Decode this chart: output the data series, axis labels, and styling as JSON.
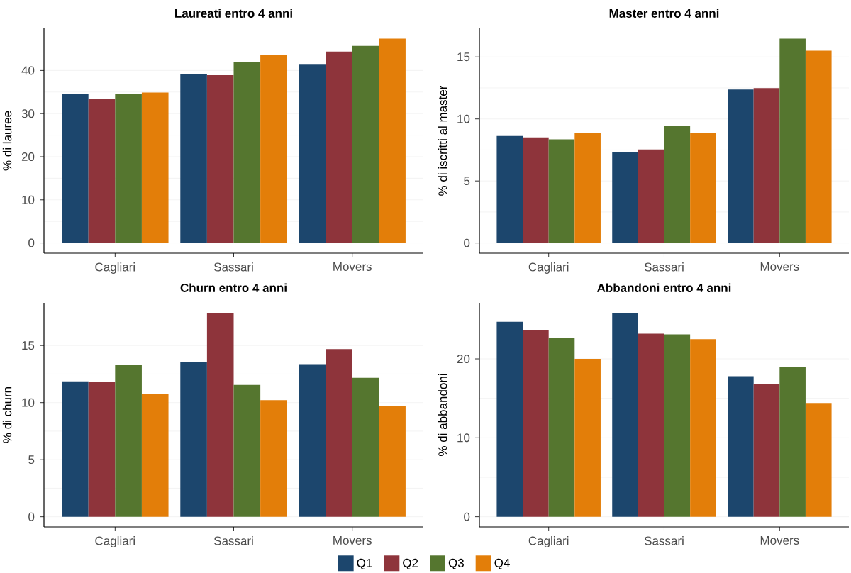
{
  "chart_data": [
    {
      "type": "bar",
      "title": "Laureati entro 4 anni",
      "ylabel": "% di lauree",
      "categories": [
        "Cagliari",
        "Sassari",
        "Movers"
      ],
      "ylim": [
        -2.37,
        49.77
      ],
      "yticks": [
        0,
        10,
        20,
        30,
        40
      ],
      "grid": "y",
      "series": [
        {
          "color": "#1c466d",
          "values": [
            34.6,
            39.2,
            41.5
          ]
        },
        {
          "color": "#8e343b",
          "values": [
            33.5,
            38.9,
            44.4
          ]
        },
        {
          "color": "#55762f",
          "values": [
            34.6,
            42.0,
            45.7
          ]
        },
        {
          "color": "#e37e09",
          "values": [
            34.9,
            43.7,
            47.4
          ]
        }
      ]
    },
    {
      "type": "bar",
      "title": "Master entro 4 anni",
      "ylabel": "% di iscritti al master",
      "categories": [
        "Cagliari",
        "Sassari",
        "Movers"
      ],
      "ylim": [
        -0.82,
        17.3
      ],
      "yticks": [
        0,
        5,
        10,
        15
      ],
      "grid": "y",
      "series": [
        {
          "color": "#1c466d",
          "values": [
            8.62,
            7.32,
            12.37
          ]
        },
        {
          "color": "#8e343b",
          "values": [
            8.51,
            7.54,
            12.48
          ]
        },
        {
          "color": "#55762f",
          "values": [
            8.36,
            9.45,
            16.47
          ]
        },
        {
          "color": "#e37e09",
          "values": [
            8.88,
            8.88,
            15.5
          ]
        }
      ]
    },
    {
      "type": "bar",
      "title": "Churn entro 4 anni",
      "ylabel": "% di churn",
      "categories": [
        "Cagliari",
        "Sassari",
        "Movers"
      ],
      "ylim": [
        -0.89,
        18.74
      ],
      "yticks": [
        0,
        5,
        10,
        15
      ],
      "grid": "y",
      "series": [
        {
          "color": "#1c466d",
          "values": [
            11.86,
            13.57,
            13.36
          ]
        },
        {
          "color": "#8e343b",
          "values": [
            11.81,
            17.85,
            14.69
          ]
        },
        {
          "color": "#55762f",
          "values": [
            13.29,
            11.55,
            12.17
          ]
        },
        {
          "color": "#e37e09",
          "values": [
            10.79,
            10.22,
            9.67
          ]
        }
      ]
    },
    {
      "type": "bar",
      "title": "Abbandoni entro 4 anni",
      "ylabel": "% di abbandoni",
      "categories": [
        "Cagliari",
        "Sassari",
        "Movers"
      ],
      "ylim": [
        -1.29,
        27.1
      ],
      "yticks": [
        0,
        10,
        20
      ],
      "grid": "y",
      "legend": "bottom",
      "series": [
        {
          "name": "Q1",
          "color": "#1c466d",
          "values": [
            24.7,
            25.8,
            17.8
          ]
        },
        {
          "name": "Q2",
          "color": "#8e343b",
          "values": [
            23.6,
            23.2,
            16.8
          ]
        },
        {
          "name": "Q3",
          "color": "#55762f",
          "values": [
            22.7,
            23.1,
            19.0
          ]
        },
        {
          "name": "Q4",
          "color": "#e37e09",
          "values": [
            20.0,
            22.5,
            14.4
          ]
        }
      ]
    }
  ]
}
